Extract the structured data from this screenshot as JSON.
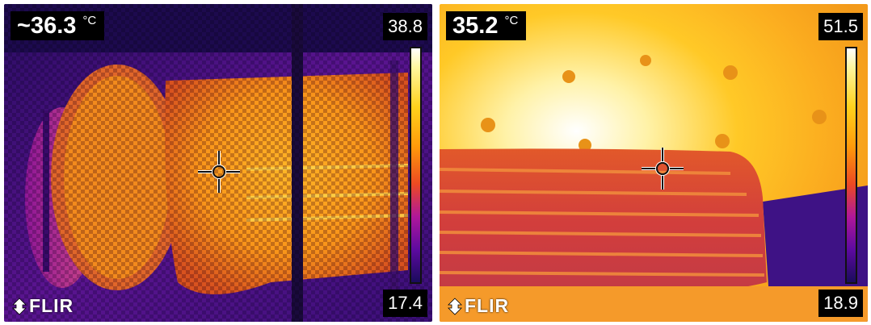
{
  "images": [
    {
      "id": "left",
      "spot_temperature": "~36.3",
      "unit": "°C",
      "scale_max": "38.8",
      "scale_min": "17.4",
      "logo_text": "FLIR",
      "logo_icon": "flir-flame-icon"
    },
    {
      "id": "right",
      "spot_temperature": "35.2",
      "unit": "°C",
      "scale_max": "51.5",
      "scale_min": "18.9",
      "logo_text": "FLIR",
      "logo_icon": "flir-flame-icon"
    }
  ],
  "colors": {
    "palette_hot": "#fffbe0",
    "palette_warm": "#ffc21e",
    "palette_mid": "#f07a1a",
    "palette_cool": "#b0179a",
    "palette_cold": "#2a0d6e",
    "overlay_bg": "#000000"
  }
}
